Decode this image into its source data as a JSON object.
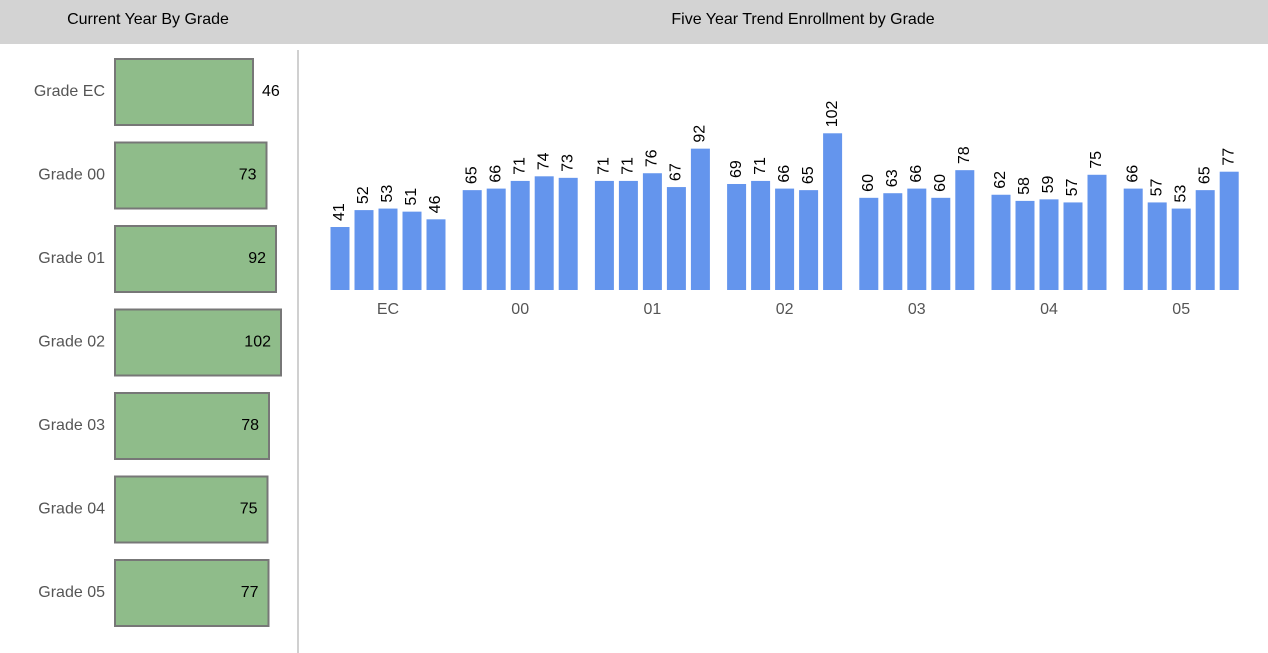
{
  "chart_data": [
    {
      "type": "hbar",
      "title": "Current Year By Grade",
      "categories": [
        "Grade EC",
        "Grade 00",
        "Grade 01",
        "Grade 02",
        "Grade 03",
        "Grade 04",
        "Grade 05"
      ],
      "values": [
        46,
        73,
        92,
        102,
        78,
        75,
        77
      ],
      "color": "#8fbc8a",
      "xlim": [
        -230,
        110
      ]
    },
    {
      "type": "grouped-bar",
      "title": "Five Year Trend Enrollment by Grade",
      "categories": [
        "EC",
        "00",
        "01",
        "02",
        "03",
        "04",
        "05"
      ],
      "series": [
        {
          "color": "#6495ed",
          "values": [
            41,
            65,
            71,
            69,
            60,
            62,
            66
          ]
        },
        {
          "color": "#6495ed",
          "values": [
            52,
            66,
            71,
            71,
            63,
            58,
            57
          ]
        },
        {
          "color": "#6495ed",
          "values": [
            53,
            71,
            76,
            66,
            66,
            59,
            53
          ]
        },
        {
          "color": "#6495ed",
          "values": [
            51,
            74,
            67,
            65,
            60,
            57,
            65
          ]
        },
        {
          "color": "#6495ed",
          "values": [
            46,
            73,
            92,
            102,
            78,
            75,
            77
          ]
        }
      ],
      "ylim": [
        0,
        110
      ]
    }
  ]
}
